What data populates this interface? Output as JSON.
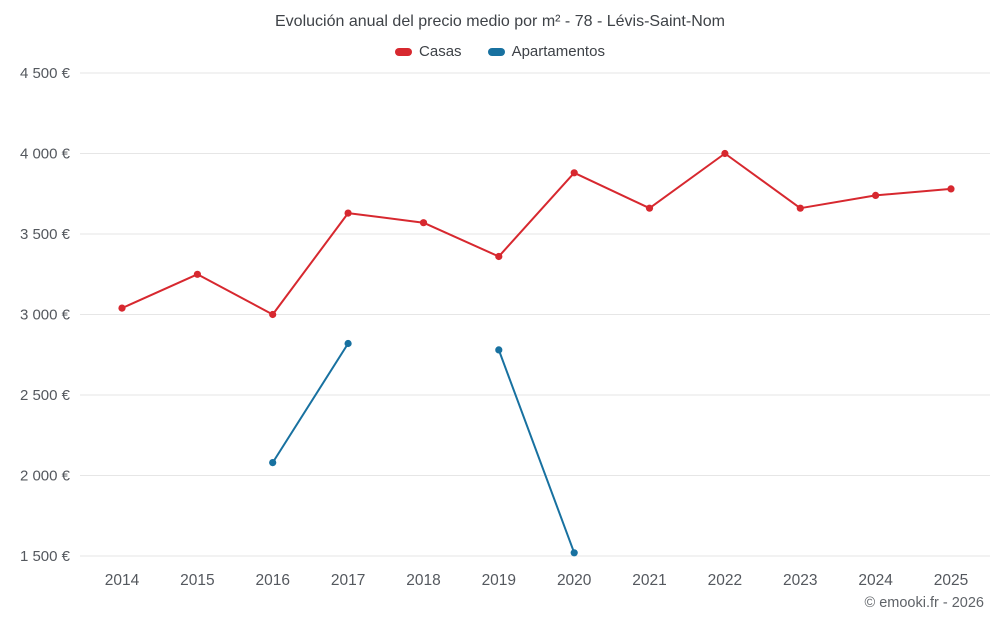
{
  "chart_data": {
    "type": "line",
    "title": "Evolución anual del precio medio por m² - 78 - Lévis-Saint-Nom",
    "categories": [
      "2014",
      "2015",
      "2016",
      "2017",
      "2018",
      "2019",
      "2020",
      "2021",
      "2022",
      "2023",
      "2024",
      "2025"
    ],
    "series": [
      {
        "name": "Casas",
        "color": "#d7282f",
        "values": [
          3040,
          3250,
          3000,
          3630,
          3570,
          3360,
          3880,
          3660,
          4000,
          3660,
          3740,
          3780
        ]
      },
      {
        "name": "Apartamentos",
        "color": "#1871a0",
        "values": [
          null,
          null,
          2080,
          2820,
          null,
          2780,
          1520,
          null,
          null,
          null,
          null,
          null
        ]
      }
    ],
    "ylim": [
      1500,
      4500
    ],
    "ytick_step": 500,
    "ytick_suffix": " €",
    "xlabel": "",
    "ylabel": "",
    "grid": true,
    "legend_position": "top"
  },
  "footer": {
    "copyright": "© emooki.fr - 2026"
  },
  "colors": {
    "background": "#ffffff",
    "grid": "#e6e6e6",
    "axis_text": "#54585e",
    "title_text": "#3e4247",
    "copyright_text": "#5f6368"
  }
}
